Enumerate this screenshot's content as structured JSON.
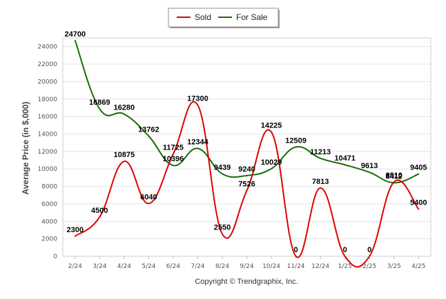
{
  "chart_data": {
    "type": "line",
    "title": "",
    "xlabel": "",
    "ylabel": "Average Price (in $,000)",
    "categories": [
      "2/24",
      "3/24",
      "4/24",
      "5/24",
      "6/24",
      "7/24",
      "8/24",
      "9/24",
      "10/24",
      "11/24",
      "12/24",
      "1/25",
      "2/25",
      "3/25",
      "4/25"
    ],
    "ylim": [
      0,
      25000
    ],
    "yticks": [
      0,
      2000,
      4000,
      6000,
      8000,
      10000,
      12000,
      14000,
      16000,
      18000,
      20000,
      22000,
      24000
    ],
    "grid": true,
    "smooth": true,
    "legend_position": "top-center",
    "series": [
      {
        "name": "Sold",
        "color": "#dd0000",
        "values": [
          2300,
          4500,
          10875,
          6040,
          11725,
          17300,
          2550,
          7526,
          14225,
          0,
          7813,
          0,
          0,
          8510,
          5400
        ]
      },
      {
        "name": "For Sale",
        "color": "#1a6b0a",
        "values": [
          24700,
          16869,
          16280,
          13762,
          10396,
          12344,
          9439,
          9240,
          10029,
          12509,
          11213,
          10471,
          9613,
          8412,
          9405
        ]
      }
    ],
    "credit": "Copyright © Trendgraphix, Inc."
  }
}
